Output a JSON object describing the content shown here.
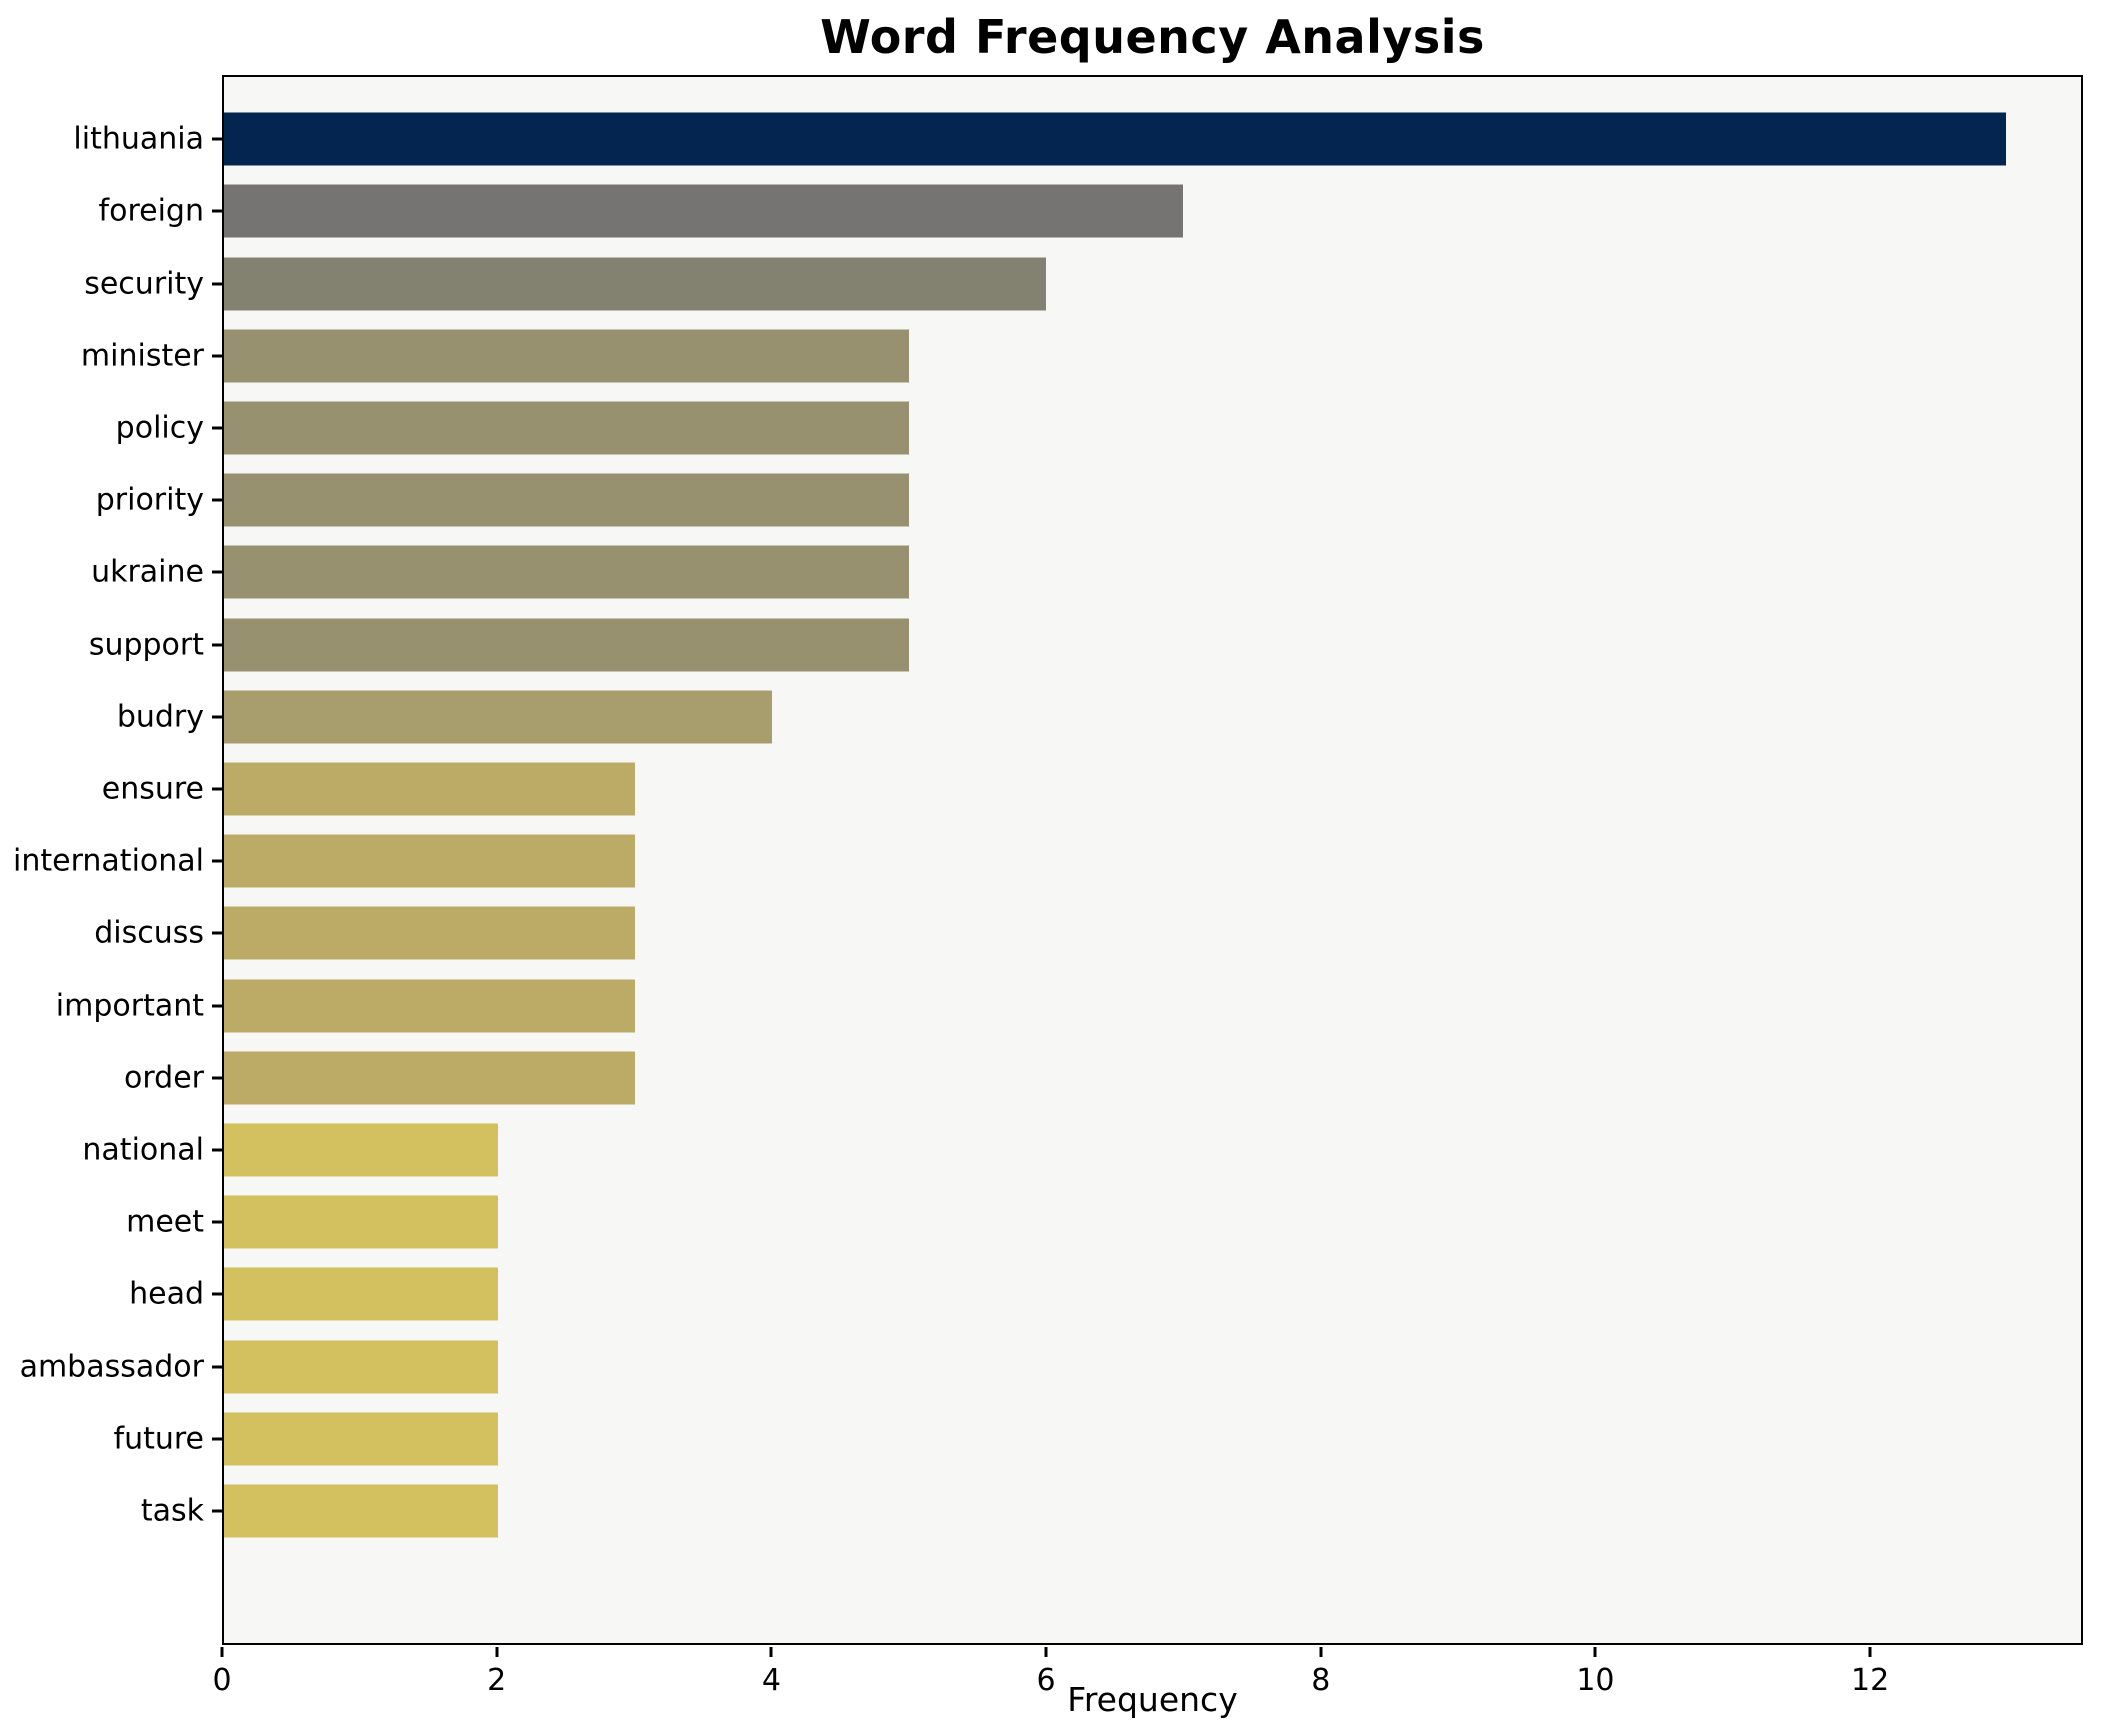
{
  "title": "Word Frequency Analysis",
  "chart_data": {
    "type": "bar",
    "orientation": "horizontal",
    "title": "Word Frequency Analysis",
    "xlabel": "Frequency",
    "ylabel": "",
    "categories": [
      "lithuania",
      "foreign",
      "security",
      "minister",
      "policy",
      "priority",
      "ukraine",
      "support",
      "budry",
      "ensure",
      "international",
      "discuss",
      "important",
      "order",
      "national",
      "meet",
      "head",
      "ambassador",
      "future",
      "task"
    ],
    "values": [
      13,
      7,
      6,
      5,
      5,
      5,
      5,
      5,
      4,
      3,
      3,
      3,
      3,
      3,
      2,
      2,
      2,
      2,
      2,
      2
    ],
    "bar_colors": [
      "#03254f",
      "#757473",
      "#838170",
      "#97916f",
      "#97916f",
      "#97916f",
      "#97916f",
      "#97916f",
      "#a89d6c",
      "#bcab66",
      "#bcab66",
      "#bcab66",
      "#bcab66",
      "#bcab66",
      "#d3c15f",
      "#d3c15f",
      "#d3c15f",
      "#d3c15f",
      "#d3c15f",
      "#d3c15f"
    ],
    "xticks": [
      0,
      2,
      4,
      6,
      8,
      10,
      12
    ],
    "xlim": [
      0,
      13.55
    ],
    "grid": false,
    "legend": "none",
    "plot_background": "#f7f7f5",
    "figure_background": "#ffffff",
    "spine_color": "#000000"
  }
}
